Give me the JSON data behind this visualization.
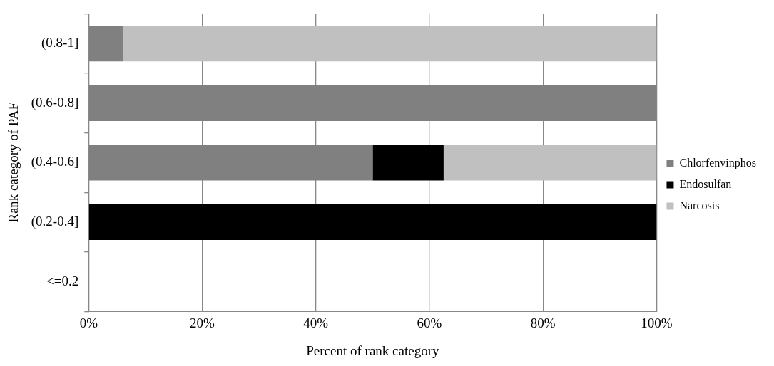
{
  "chart_data": {
    "type": "bar",
    "orientation": "horizontal",
    "stacked": true,
    "xlabel": "Percent of rank category",
    "ylabel": "Rank category of PAF",
    "categories": [
      "(0.8-1]",
      "(0.6-0.8]",
      "(0.4-0.6]",
      "(0.2-0.4]",
      "<=0.2"
    ],
    "series": [
      {
        "name": "Chlorfenvinphos",
        "color": "#808080",
        "values": [
          6,
          100,
          50,
          0,
          null
        ]
      },
      {
        "name": "Endosulfan",
        "color": "#000000",
        "values": [
          0,
          0,
          12.5,
          100,
          null
        ]
      },
      {
        "name": "Narcosis",
        "color": "#c0c0c0",
        "values": [
          94,
          0,
          37.5,
          0,
          null
        ]
      }
    ],
    "xlim": [
      0,
      100
    ],
    "xticks": [
      {
        "value": 0,
        "label": "0%"
      },
      {
        "value": 20,
        "label": "20%"
      },
      {
        "value": 40,
        "label": "40%"
      },
      {
        "value": 60,
        "label": "60%"
      },
      {
        "value": 80,
        "label": "80%"
      },
      {
        "value": 100,
        "label": "100%"
      }
    ],
    "grid": "x",
    "legend": "right"
  }
}
